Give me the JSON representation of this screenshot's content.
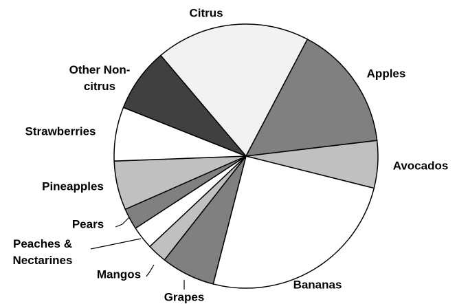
{
  "chart_data": {
    "type": "pie",
    "categories": [
      "Citrus",
      "Apples",
      "Avocados",
      "Bananas",
      "Grapes",
      "Mangos",
      "Peaches & Nectarines",
      "Pears",
      "Pineapples",
      "Strawberries",
      "Other Non-citrus"
    ],
    "values": [
      18.9,
      15.4,
      5.8,
      25.1,
      6.6,
      2.4,
      2.8,
      2.6,
      6.0,
      6.6,
      7.8
    ],
    "colors": [
      "#f2f2f2",
      "#808080",
      "#c0c0c0",
      "#ffffff",
      "#808080",
      "#c0c0c0",
      "#ffffff",
      "#808080",
      "#c0c0c0",
      "#ffffff",
      "#404040"
    ]
  }
}
